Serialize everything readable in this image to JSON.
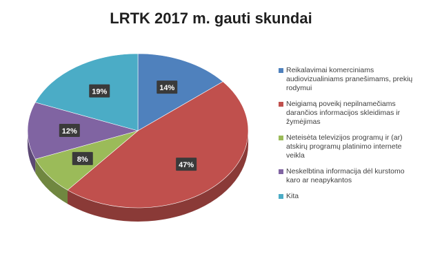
{
  "chart_data": {
    "type": "pie",
    "title": "LRTK 2017 m. gauti skundai",
    "series": [
      {
        "label": "Reikalavimai komerciniams audiovizualiniams pranešimams, prekių rodymui",
        "value": 14,
        "display": "14%",
        "color": "#4f81bd"
      },
      {
        "label": "Neigiamą poveikį nepilnamečiams darančios informacijos skleidimas ir žymėjimas",
        "value": 47,
        "display": "47%",
        "color": "#c0504d"
      },
      {
        "label": "Neteisėta televizijos programų ir (ar) atskirų programų platinimo internete veikla",
        "value": 8,
        "display": "8%",
        "color": "#9bbb59"
      },
      {
        "label": "Neskelbtina informacija dėl kurstomo karo ar neapykantos",
        "value": 12,
        "display": "12%",
        "color": "#8064a2"
      },
      {
        "label": "Kita",
        "value": 19,
        "display": "19%",
        "color": "#4bacc6"
      }
    ],
    "legend_position": "right"
  }
}
